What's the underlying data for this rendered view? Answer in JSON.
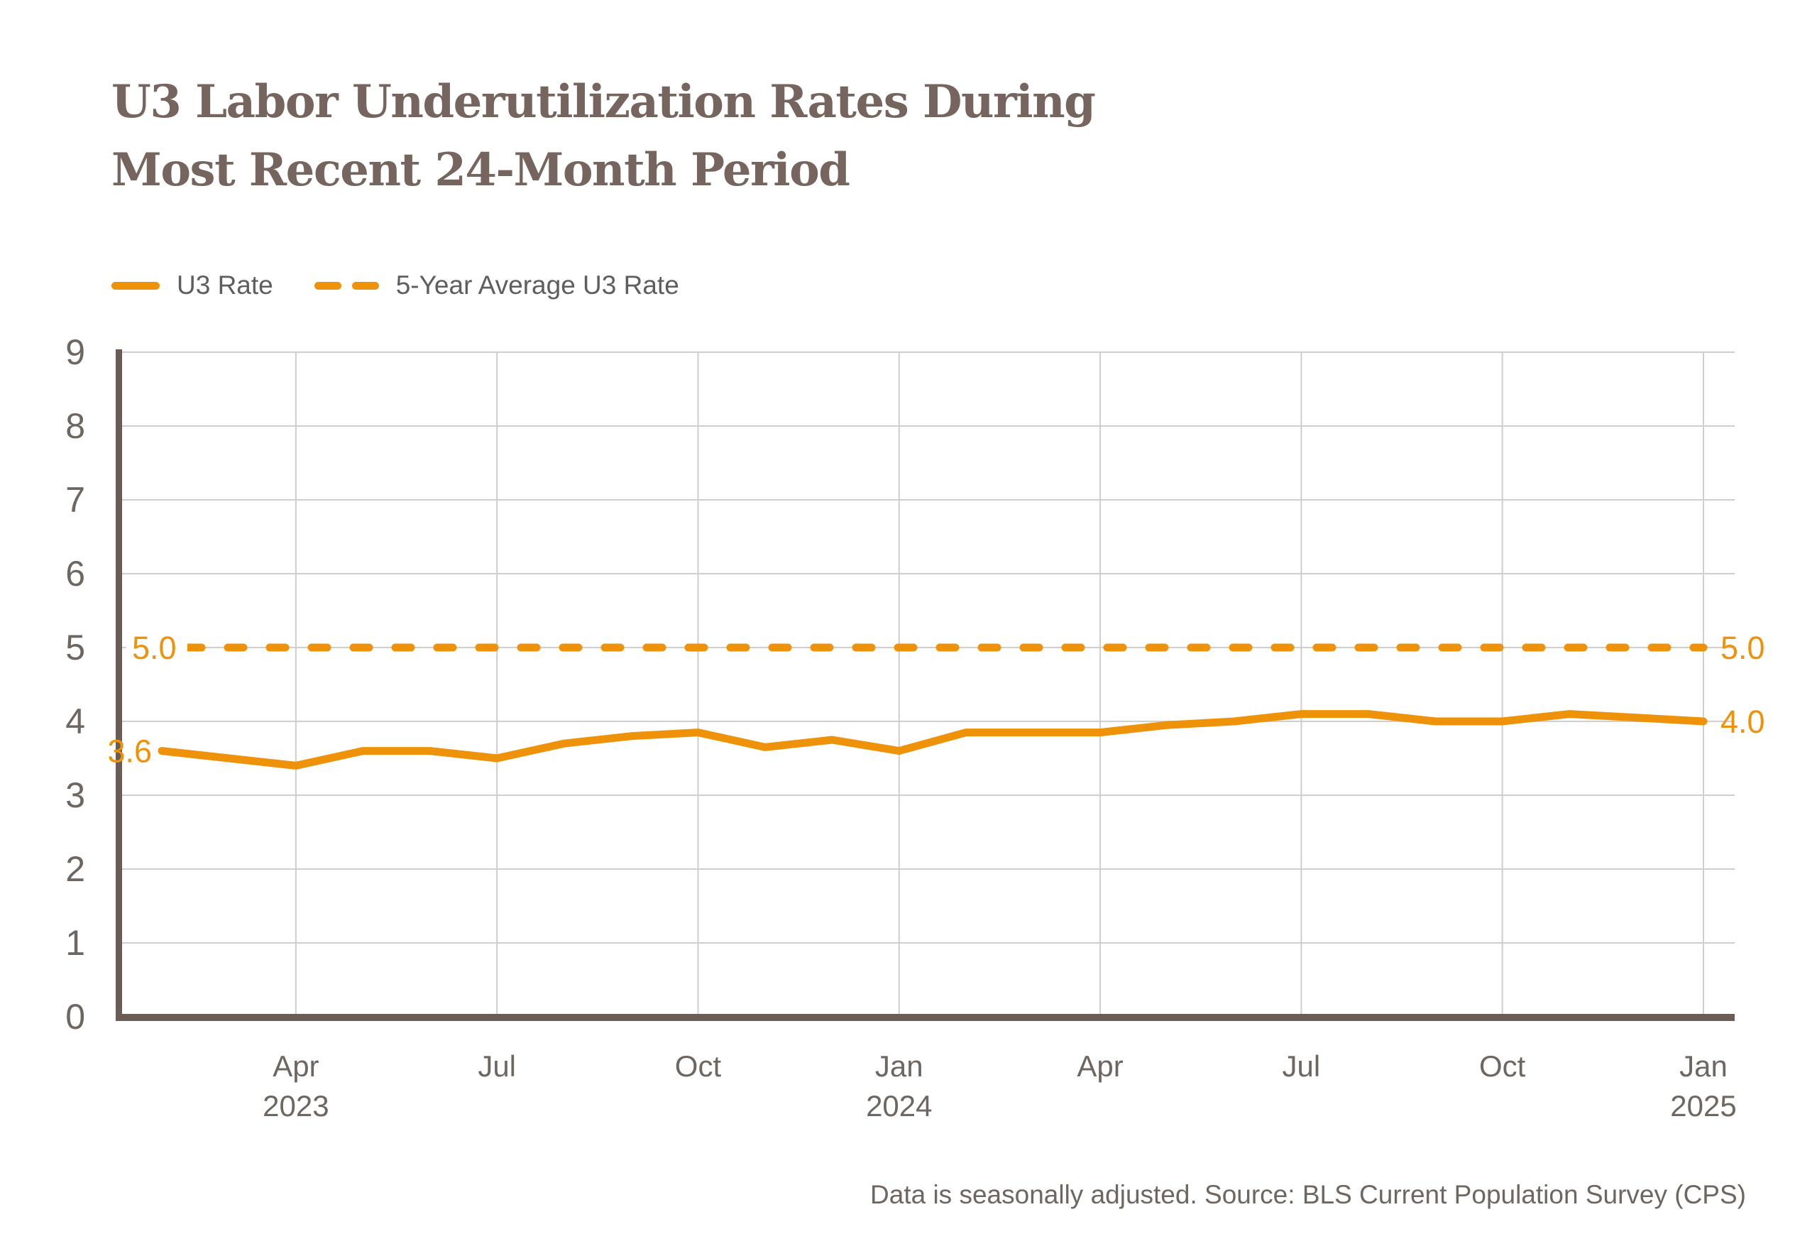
{
  "title": {
    "line1": "U3 Labor Underutilization Rates During",
    "line2": "Most Recent 24-Month Period"
  },
  "legend": {
    "items": [
      {
        "label": "U3 Rate",
        "style": "solid"
      },
      {
        "label": "5-Year Average U3 Rate",
        "style": "dashed"
      }
    ]
  },
  "footer": "Data is seasonally adjusted. Source: BLS Current Population Survey (CPS)",
  "colors": {
    "accent_orange": "#ee9209",
    "title_brown": "#76655e",
    "axis_taupe": "#6b5d55",
    "gridline_gray": "#d0cdcb",
    "tick_label_gray": "#6e6660",
    "legend_text_gray": "#5e5e5e"
  },
  "chart_data": {
    "type": "line",
    "title": "U3 Labor Underutilization Rates During Most Recent 24-Month Period",
    "x": [
      "Feb 2023",
      "Mar 2023",
      "Apr 2023",
      "May 2023",
      "Jun 2023",
      "Jul 2023",
      "Aug 2023",
      "Sep 2023",
      "Oct 2023",
      "Nov 2023",
      "Dec 2023",
      "Jan 2024",
      "Feb 2024",
      "Mar 2024",
      "Apr 2024",
      "May 2024",
      "Jun 2024",
      "Jul 2024",
      "Aug 2024",
      "Sep 2024",
      "Oct 2024",
      "Nov 2024",
      "Dec 2024",
      "Jan 2025"
    ],
    "series": [
      {
        "name": "U3 Rate",
        "style": "solid",
        "values": [
          3.6,
          3.5,
          3.4,
          3.6,
          3.6,
          3.5,
          3.7,
          3.8,
          3.85,
          3.65,
          3.75,
          3.6,
          3.85,
          3.85,
          3.85,
          3.95,
          4.0,
          4.1,
          4.1,
          4.0,
          4.0,
          4.1,
          4.05,
          4.0
        ]
      },
      {
        "name": "5-Year Average U3 Rate",
        "style": "dashed",
        "constant": 5.0
      }
    ],
    "ylim": [
      0,
      9
    ],
    "yticks": [
      0,
      1,
      2,
      3,
      4,
      5,
      6,
      7,
      8,
      9
    ],
    "xticks": [
      {
        "index": 2,
        "label": "Apr",
        "sublabel": "2023"
      },
      {
        "index": 5,
        "label": "Jul",
        "sublabel": ""
      },
      {
        "index": 8,
        "label": "Oct",
        "sublabel": ""
      },
      {
        "index": 11,
        "label": "Jan",
        "sublabel": "2024"
      },
      {
        "index": 14,
        "label": "Apr",
        "sublabel": ""
      },
      {
        "index": 17,
        "label": "Jul",
        "sublabel": ""
      },
      {
        "index": 20,
        "label": "Oct",
        "sublabel": ""
      },
      {
        "index": 23,
        "label": "Jan",
        "sublabel": "2025"
      }
    ],
    "annotations": {
      "first_point_label": "3.6",
      "last_point_label": "4.0",
      "avg_label_left": "5.0",
      "avg_label_right": "5.0"
    },
    "grid": true,
    "legend_position": "top-left",
    "xlabel": "",
    "ylabel": ""
  }
}
